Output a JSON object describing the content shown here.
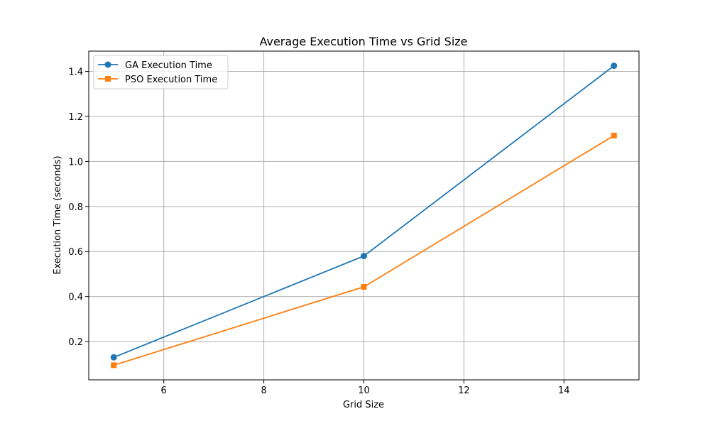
{
  "chart_data": {
    "type": "line",
    "title": "Average Execution Time vs Grid Size",
    "xlabel": "Grid Size",
    "ylabel": "Execution Time (seconds)",
    "xlim": [
      4.5,
      15.5
    ],
    "ylim": [
      0.03,
      1.49
    ],
    "xticks": [
      6,
      8,
      10,
      12,
      14
    ],
    "yticks": [
      0.2,
      0.4,
      0.6,
      0.8,
      1.0,
      1.2,
      1.4
    ],
    "grid": true,
    "legend_position": "top-left",
    "x": [
      5,
      10,
      15
    ],
    "series": [
      {
        "name": "GA Execution Time",
        "values": [
          0.13,
          0.58,
          1.425
        ],
        "color": "#1f77b4",
        "marker": "circle"
      },
      {
        "name": "PSO Execution Time",
        "values": [
          0.095,
          0.443,
          1.115
        ],
        "color": "#ff7f0e",
        "marker": "square"
      }
    ]
  }
}
